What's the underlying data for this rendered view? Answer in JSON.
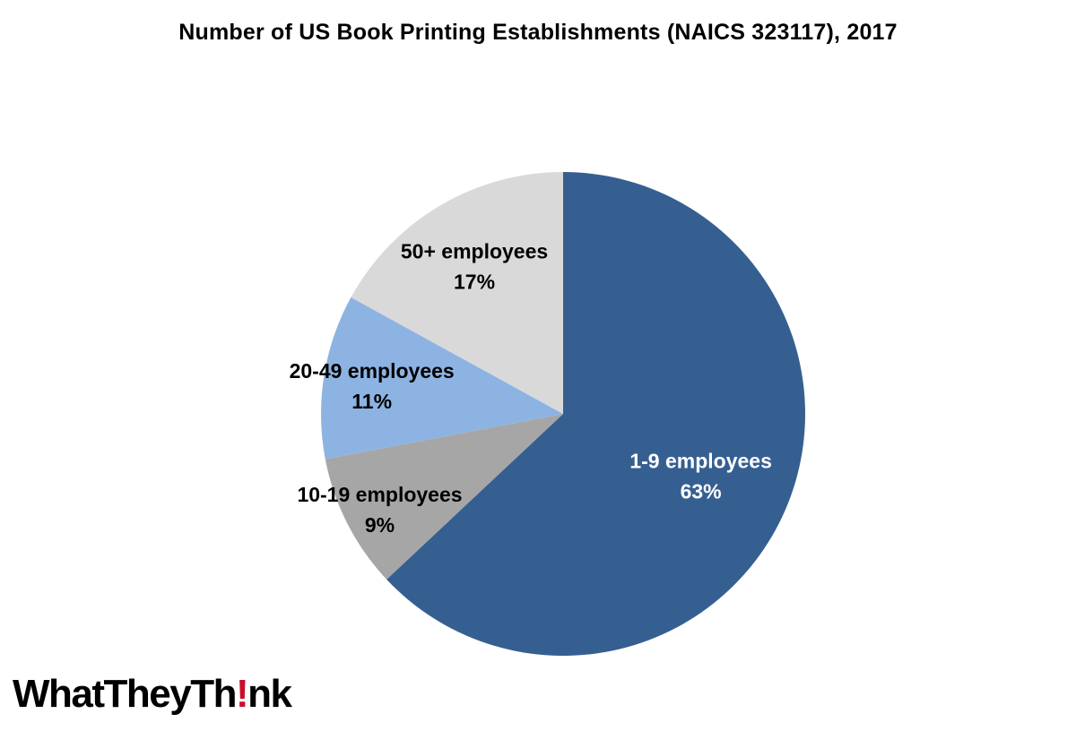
{
  "chart_data": {
    "type": "pie",
    "title": "Number of US Book Printing Establishments (NAICS 323117), 2017",
    "slices": [
      {
        "label": "1-9 employees",
        "value": 63,
        "value_label": "63%",
        "color": "#365f91",
        "text_color": "#ffffff"
      },
      {
        "label": "10-19 employees",
        "value": 9,
        "value_label": "9%",
        "color": "#a6a6a6",
        "text_color": "#000000"
      },
      {
        "label": "20-49 employees",
        "value": 11,
        "value_label": "11%",
        "color": "#8db3e2",
        "text_color": "#000000"
      },
      {
        "label": "50+ employees",
        "value": 17,
        "value_label": "17%",
        "color": "#d9d9d9",
        "text_color": "#000000"
      }
    ],
    "start": "12 o'clock",
    "direction": "clockwise",
    "legend": "none"
  },
  "branding": {
    "logo_text_a": "WhatTheyTh",
    "logo_text_b": "!",
    "logo_text_c": "nk"
  }
}
